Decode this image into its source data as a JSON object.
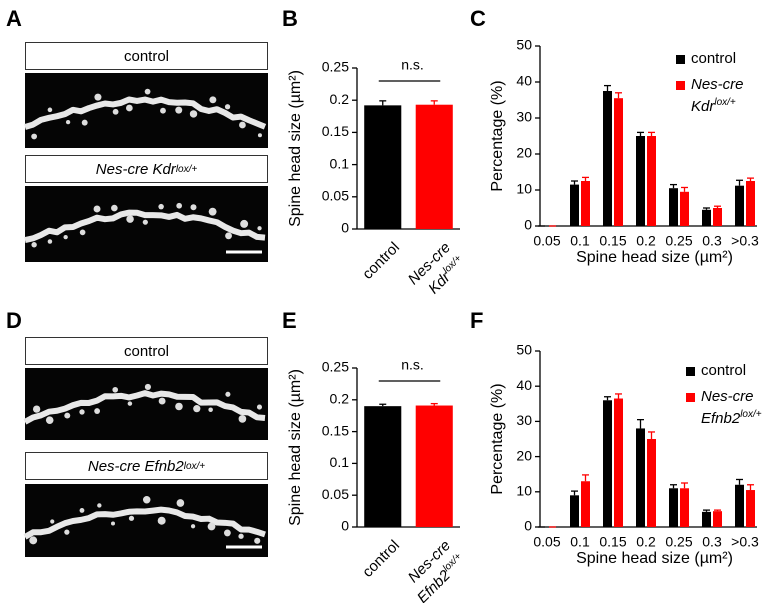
{
  "panel_labels": [
    "A",
    "B",
    "C",
    "D",
    "E",
    "F"
  ],
  "images": [
    {
      "label": "control"
    },
    {
      "label": "Nes-cre Kdr",
      "label_superscript": "lox/+"
    },
    {
      "label": "control"
    },
    {
      "label": "Nes-cre Efnb2",
      "label_superscript": "lox/+"
    }
  ],
  "chart_data": [
    {
      "type": "bar",
      "ylabel": "Spine head size (µm²)",
      "annotation": "n.s.",
      "categories": [
        "control",
        "Nes-cre Kdr"
      ],
      "category_superscripts": [
        null,
        "lox/+"
      ],
      "values": [
        0.192,
        0.193
      ],
      "errors": [
        0.007,
        0.006
      ],
      "colors": [
        "#000000",
        "#ff0000"
      ],
      "ylim": [
        0,
        0.25
      ],
      "yticks": [
        0,
        0.05,
        0.1,
        0.15,
        0.2,
        0.25
      ]
    },
    {
      "type": "bar",
      "ylabel": "Percentage (%)",
      "xlabel": "Spine head size (µm²)",
      "categories": [
        "0.05",
        "0.1",
        "0.15",
        "0.2",
        "0.25",
        "0.3",
        ">0.3"
      ],
      "series": [
        {
          "name": "control",
          "color": "#000000",
          "values": [
            0,
            11.5,
            37.5,
            25,
            10.5,
            4.5,
            11.2
          ],
          "errors": [
            0,
            1,
            1.5,
            1,
            1,
            0.5,
            1.5
          ]
        },
        {
          "name": "Nes-cre Kdr",
          "name_superscript": "lox/+",
          "color": "#ff0000",
          "values": [
            0,
            12.5,
            35.5,
            25,
            9.5,
            5,
            12.5
          ],
          "errors": [
            0,
            1,
            1.5,
            1,
            1.2,
            0.5,
            0.8
          ]
        }
      ],
      "ylim": [
        0,
        50
      ],
      "yticks": [
        0,
        10,
        20,
        30,
        40,
        50
      ]
    },
    {
      "type": "bar",
      "ylabel": "Spine head size (µm²)",
      "annotation": "n.s.",
      "categories": [
        "control",
        "Nes-cre Efnb2"
      ],
      "category_superscripts": [
        null,
        "lox/+"
      ],
      "values": [
        0.19,
        0.191
      ],
      "errors": [
        0.003,
        0.003
      ],
      "colors": [
        "#000000",
        "#ff0000"
      ],
      "ylim": [
        0,
        0.25
      ],
      "yticks": [
        0,
        0.05,
        0.1,
        0.15,
        0.2,
        0.25
      ]
    },
    {
      "type": "bar",
      "ylabel": "Percentage (%)",
      "xlabel": "Spine head size (µm²)",
      "categories": [
        "0.05",
        "0.1",
        "0.15",
        "0.2",
        "0.25",
        "0.3",
        ">0.3"
      ],
      "series": [
        {
          "name": "control",
          "color": "#000000",
          "values": [
            0,
            9,
            36,
            28,
            11,
            4.3,
            12
          ],
          "errors": [
            0,
            1.2,
            1,
            2.5,
            1,
            0.5,
            1.5
          ]
        },
        {
          "name": "Nes-cre Efnb2",
          "name_superscript": "lox/+",
          "color": "#ff0000",
          "values": [
            0,
            13,
            36.5,
            25,
            11,
            4.5,
            10.5
          ],
          "errors": [
            0,
            1.8,
            1.3,
            2,
            1.5,
            0.3,
            1.5
          ]
        }
      ],
      "ylim": [
        0,
        50
      ],
      "yticks": [
        0,
        10,
        20,
        30,
        40,
        50
      ]
    }
  ]
}
